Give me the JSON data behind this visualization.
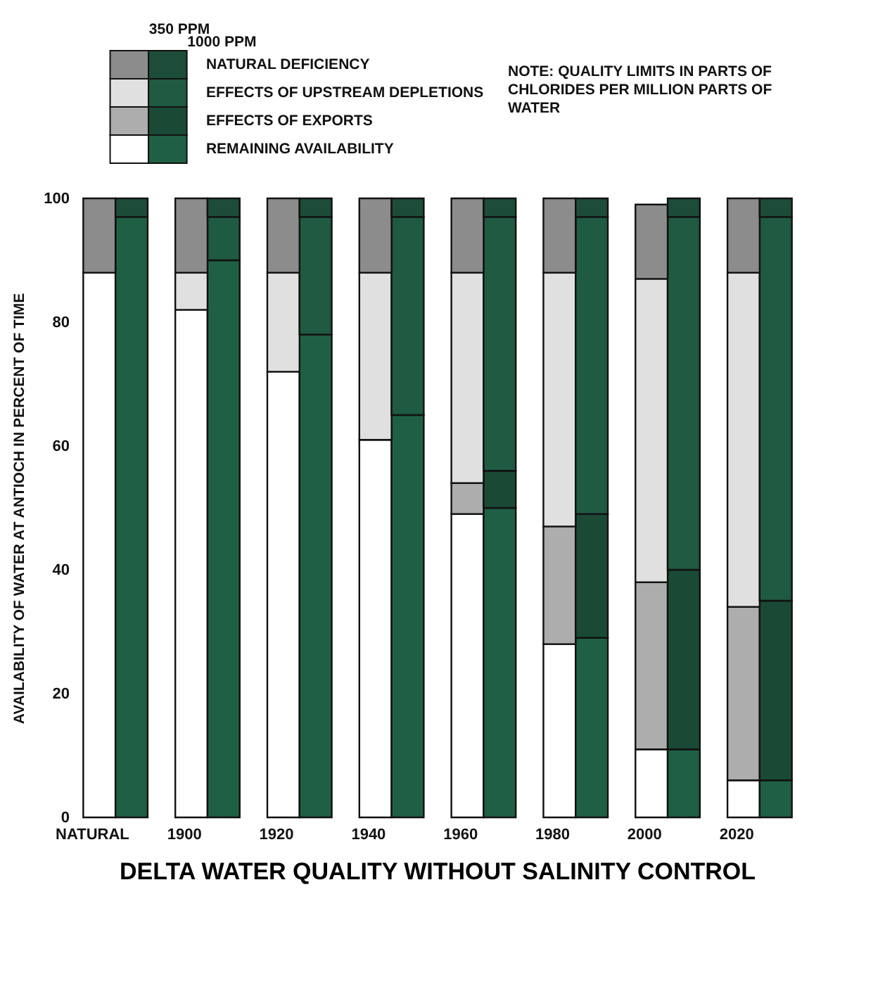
{
  "chart_data": {
    "type": "bar",
    "stacked": true,
    "title": "DELTA WATER QUALITY WITHOUT SALINITY CONTROL",
    "ylabel": "AVAILABILITY OF WATER AT ANTIOCH IN PERCENT OF TIME",
    "categories": [
      "NATURAL",
      null,
      "1900",
      null,
      "1920",
      null,
      "1940",
      null,
      "1960",
      null,
      "1980",
      null,
      "2000",
      null,
      "2020",
      null
    ],
    "series": [
      {
        "name": "REMAINING AVAILABILITY",
        "colors": [
          "#ffffff",
          "#1f6045",
          "#ffffff",
          "#1f6045",
          "#ffffff",
          "#1f6045",
          "#ffffff",
          "#1f6045",
          "#ffffff",
          "#1f6045",
          "#ffffff",
          "#1f6045",
          "#ffffff",
          "#1f6045",
          "#ffffff",
          "#1f6045"
        ],
        "values": [
          88,
          97,
          82,
          90,
          72,
          78,
          61,
          65,
          49,
          50,
          28,
          29,
          11,
          11,
          6,
          6
        ]
      },
      {
        "name": "EFFECTS OF EXPORTS",
        "colors": [
          null,
          null,
          null,
          null,
          null,
          null,
          null,
          null,
          "#adadad",
          "#1a4a36",
          "#adadad",
          "#1a4a36",
          "#adadad",
          "#1a4a36",
          "#adadad",
          "#1a4a36"
        ],
        "values": [
          null,
          null,
          null,
          null,
          null,
          null,
          null,
          null,
          5,
          6,
          19,
          20,
          27,
          29,
          28,
          29
        ]
      },
      {
        "name": "EFFECTS OF UPSTREAM DEPLETIONS",
        "colors": [
          null,
          null,
          "#e0e0e0",
          "#1f5a42",
          "#e0e0e0",
          "#1f5a42",
          "#e0e0e0",
          "#1f5a42",
          "#e0e0e0",
          "#1f5a42",
          "#e0e0e0",
          "#1f5a42",
          "#e0e0e0",
          "#1f5a42",
          "#e0e0e0",
          "#1f5a42"
        ],
        "values": [
          null,
          null,
          6,
          7,
          16,
          19,
          27,
          32,
          34,
          41,
          41,
          48,
          49,
          57,
          54,
          62
        ]
      },
      {
        "name": "NATURAL DEFICIENCY",
        "colors": [
          "#8c8c8c",
          "#1d4d3a",
          "#8c8c8c",
          "#1d4d3a",
          "#8c8c8c",
          "#1d4d3a",
          "#8c8c8c",
          "#1d4d3a",
          "#8c8c8c",
          "#1d4d3a",
          "#8c8c8c",
          "#1d4d3a",
          "#8c8c8c",
          "#1d4d3a",
          "#8c8c8c",
          "#1d4d3a"
        ],
        "values": [
          12,
          3,
          12,
          3,
          12,
          3,
          12,
          3,
          12,
          3,
          12,
          3,
          12,
          3,
          12,
          3
        ]
      }
    ],
    "annotations": [
      "350 PPM",
      "1000 PPM",
      "NOTE: QUALITY LIMITS IN PARTS OF CHLORIDES PER MILLION PARTS OF WATER"
    ],
    "ylim": [
      0,
      100
    ],
    "yticks": [
      0,
      20,
      40,
      60,
      80,
      100
    ],
    "grid": false,
    "legend": "top left"
  }
}
